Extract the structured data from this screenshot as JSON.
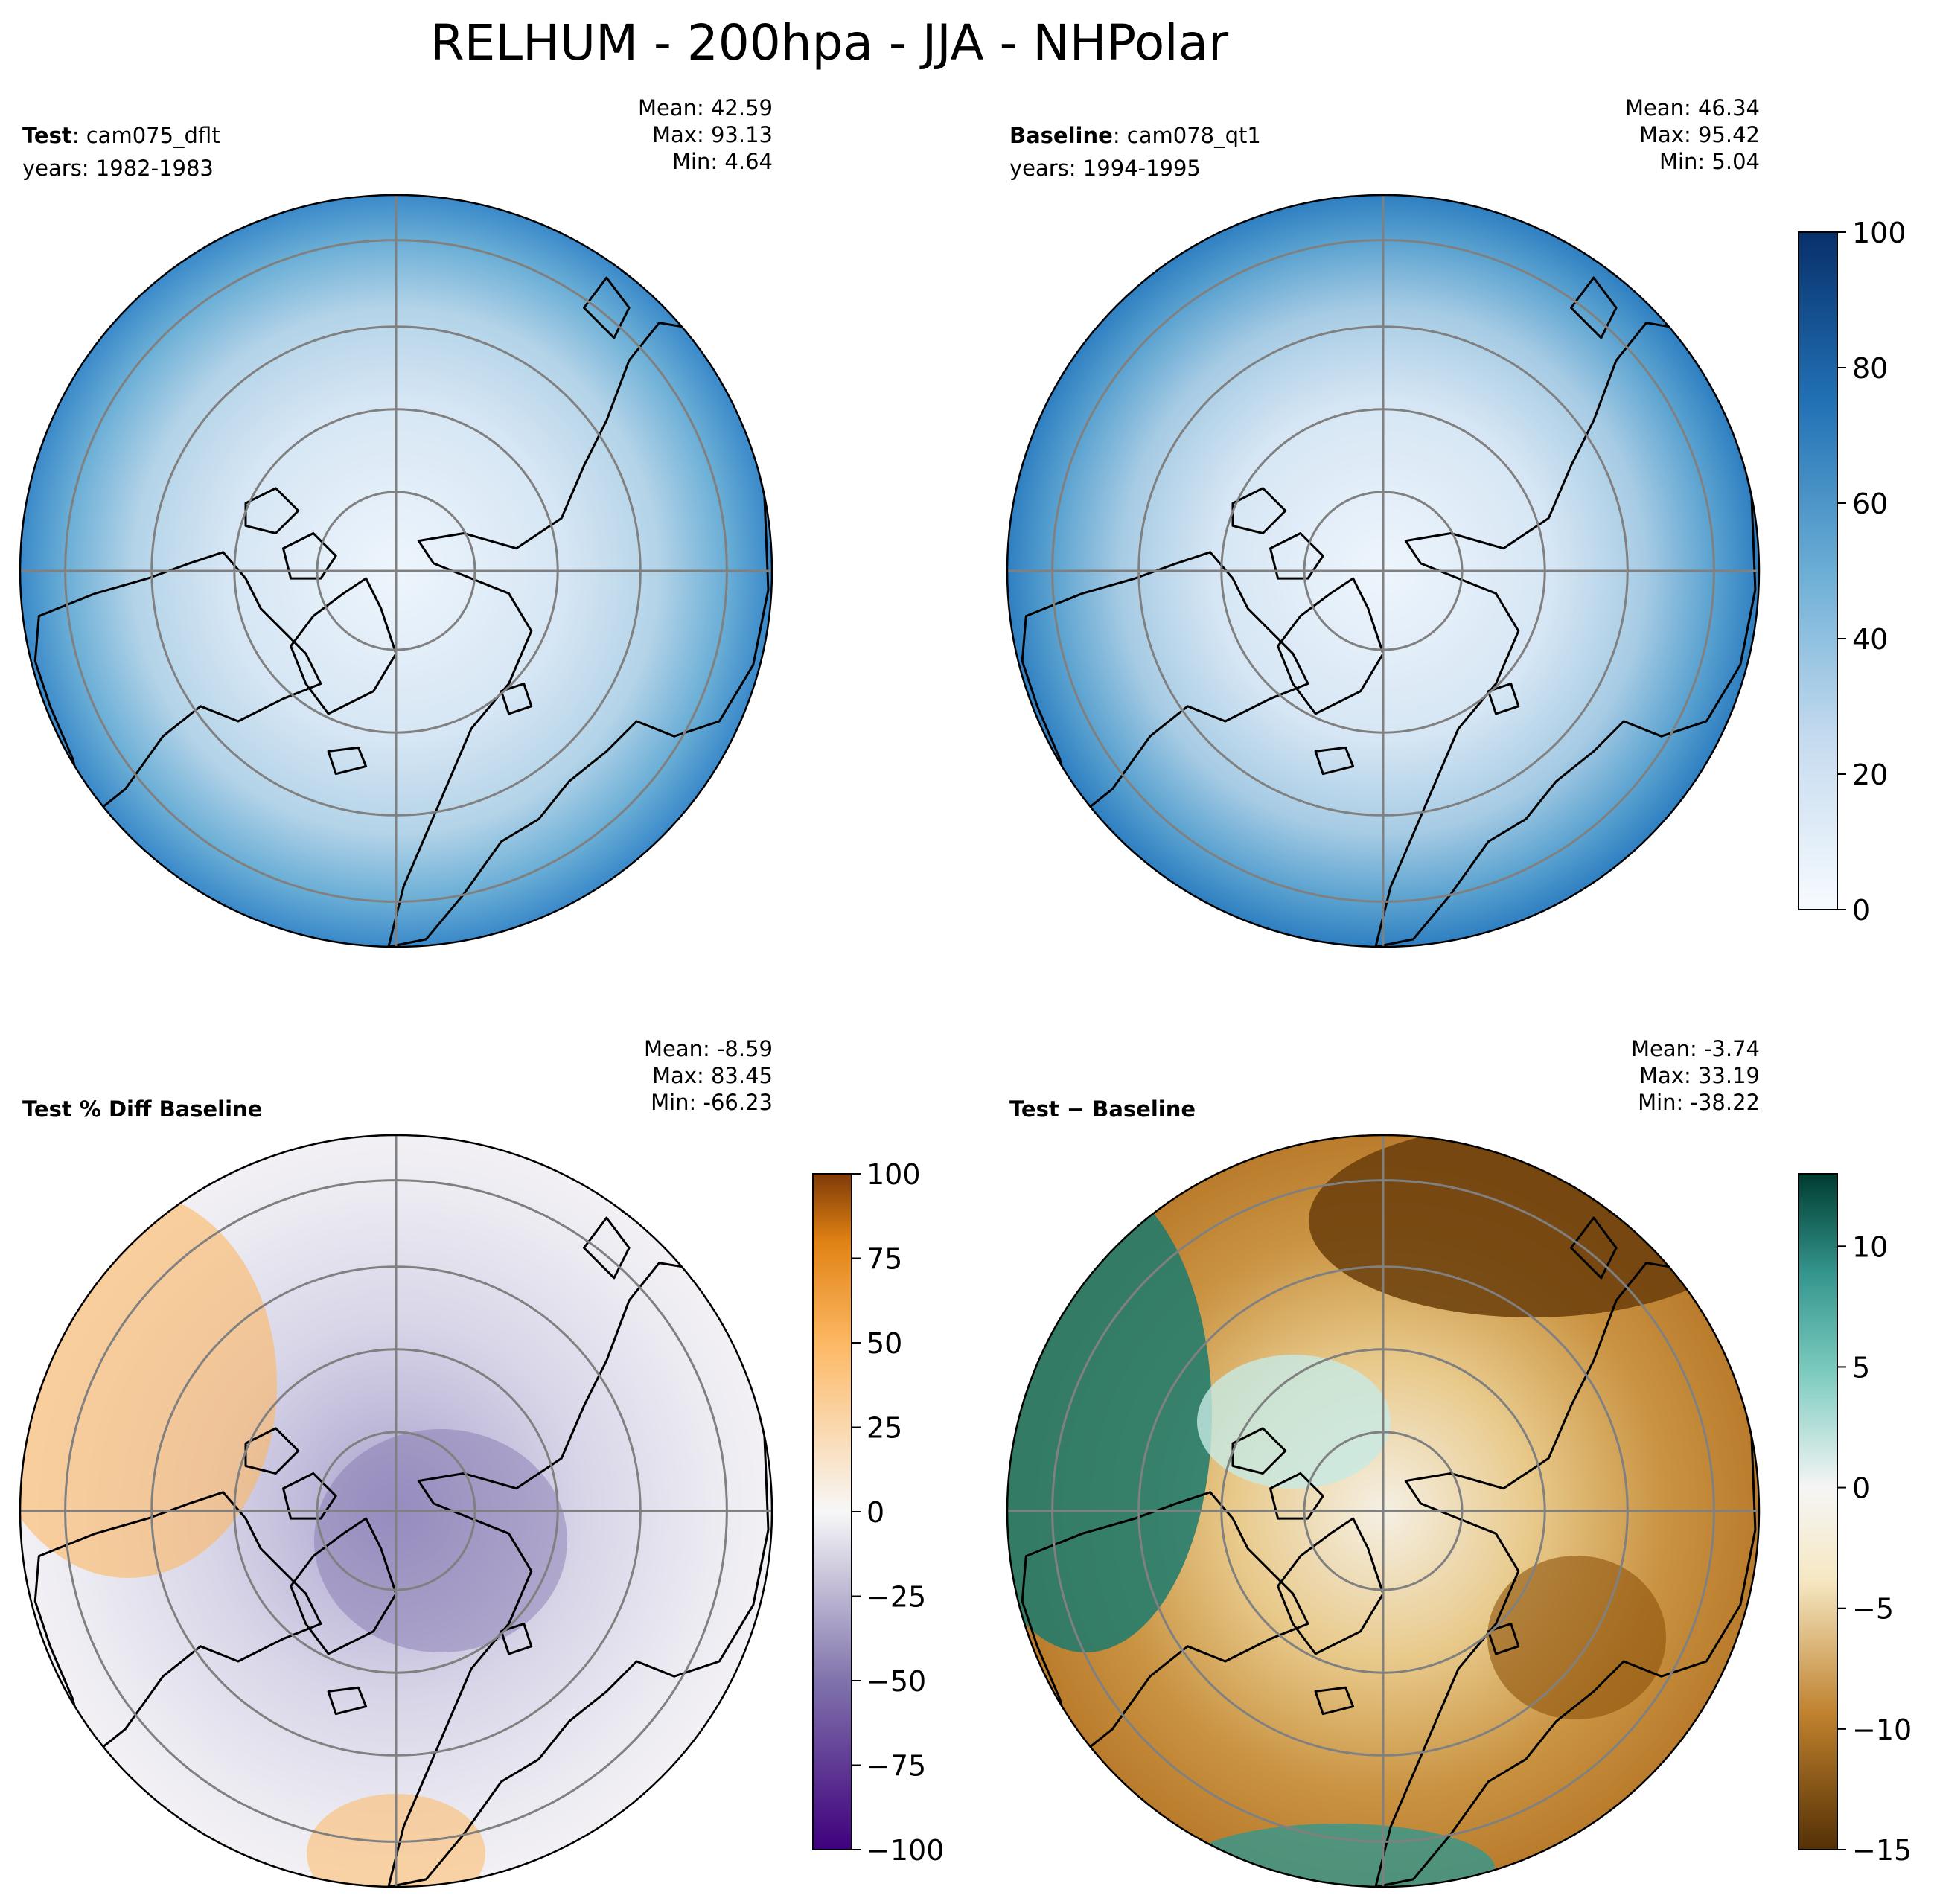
{
  "title": "RELHUM - 200hpa - JJA - NHPolar",
  "colors": {
    "land_outline": "#000000",
    "grid": "#808080",
    "blues_low": "#f7fbff",
    "blues_high": "#08306b",
    "purple_low": "#3f007d",
    "orange_high": "#7f3b08",
    "teal_high": "#003c30",
    "brown_low": "#543005"
  },
  "chart_data": [
    {
      "type": "heatmap",
      "projection": "north-polar-stereographic",
      "title_bold": "Test",
      "title_rest": ": cam075_dflt",
      "years": "years: 1982-1983",
      "stats": {
        "mean": "Mean: 42.59",
        "max": "Max: 93.13",
        "min": "Min:  4.64"
      },
      "colormap": "Blues",
      "vmin": 0,
      "vmax": 100,
      "colorbar": null
    },
    {
      "type": "heatmap",
      "projection": "north-polar-stereographic",
      "title_bold": "Baseline",
      "title_rest": ": cam078_qt1",
      "years": "years: 1994-1995",
      "stats": {
        "mean": "Mean: 46.34",
        "max": "Max: 95.42",
        "min": "Min:  5.04"
      },
      "colormap": "Blues",
      "vmin": 0,
      "vmax": 100,
      "colorbar": {
        "ticks": [
          0,
          20,
          40,
          60,
          80,
          100
        ],
        "tick_labels": [
          "0",
          "20",
          "40",
          "60",
          "80",
          "100"
        ]
      }
    },
    {
      "type": "heatmap",
      "projection": "north-polar-stereographic",
      "title_bold": "Test % Diff Baseline",
      "title_rest": "",
      "years": "",
      "stats": {
        "mean": "Mean: -8.59",
        "max": "Max: 83.45",
        "min": "Min: -66.23"
      },
      "colormap": "PuOr_r",
      "vmin": -100,
      "vmax": 100,
      "colorbar": {
        "ticks": [
          -100,
          -75,
          -50,
          -25,
          0,
          25,
          50,
          75,
          100
        ],
        "tick_labels": [
          "−100",
          "−75",
          "−50",
          "−25",
          "0",
          "25",
          "50",
          "75",
          "100"
        ]
      }
    },
    {
      "type": "heatmap",
      "projection": "north-polar-stereographic",
      "title_bold": "Test − Baseline",
      "title_rest": "",
      "years": "",
      "stats": {
        "mean": "Mean: -3.74",
        "max": "Max: 33.19",
        "min": "Min: -38.22"
      },
      "colormap": "BrBG",
      "vmin": -15,
      "vmax": 13,
      "colorbar": {
        "ticks": [
          -15,
          -10,
          -5,
          0,
          5,
          10
        ],
        "tick_labels": [
          "−15",
          "−10",
          "−5",
          "0",
          "5",
          "10"
        ]
      }
    }
  ]
}
